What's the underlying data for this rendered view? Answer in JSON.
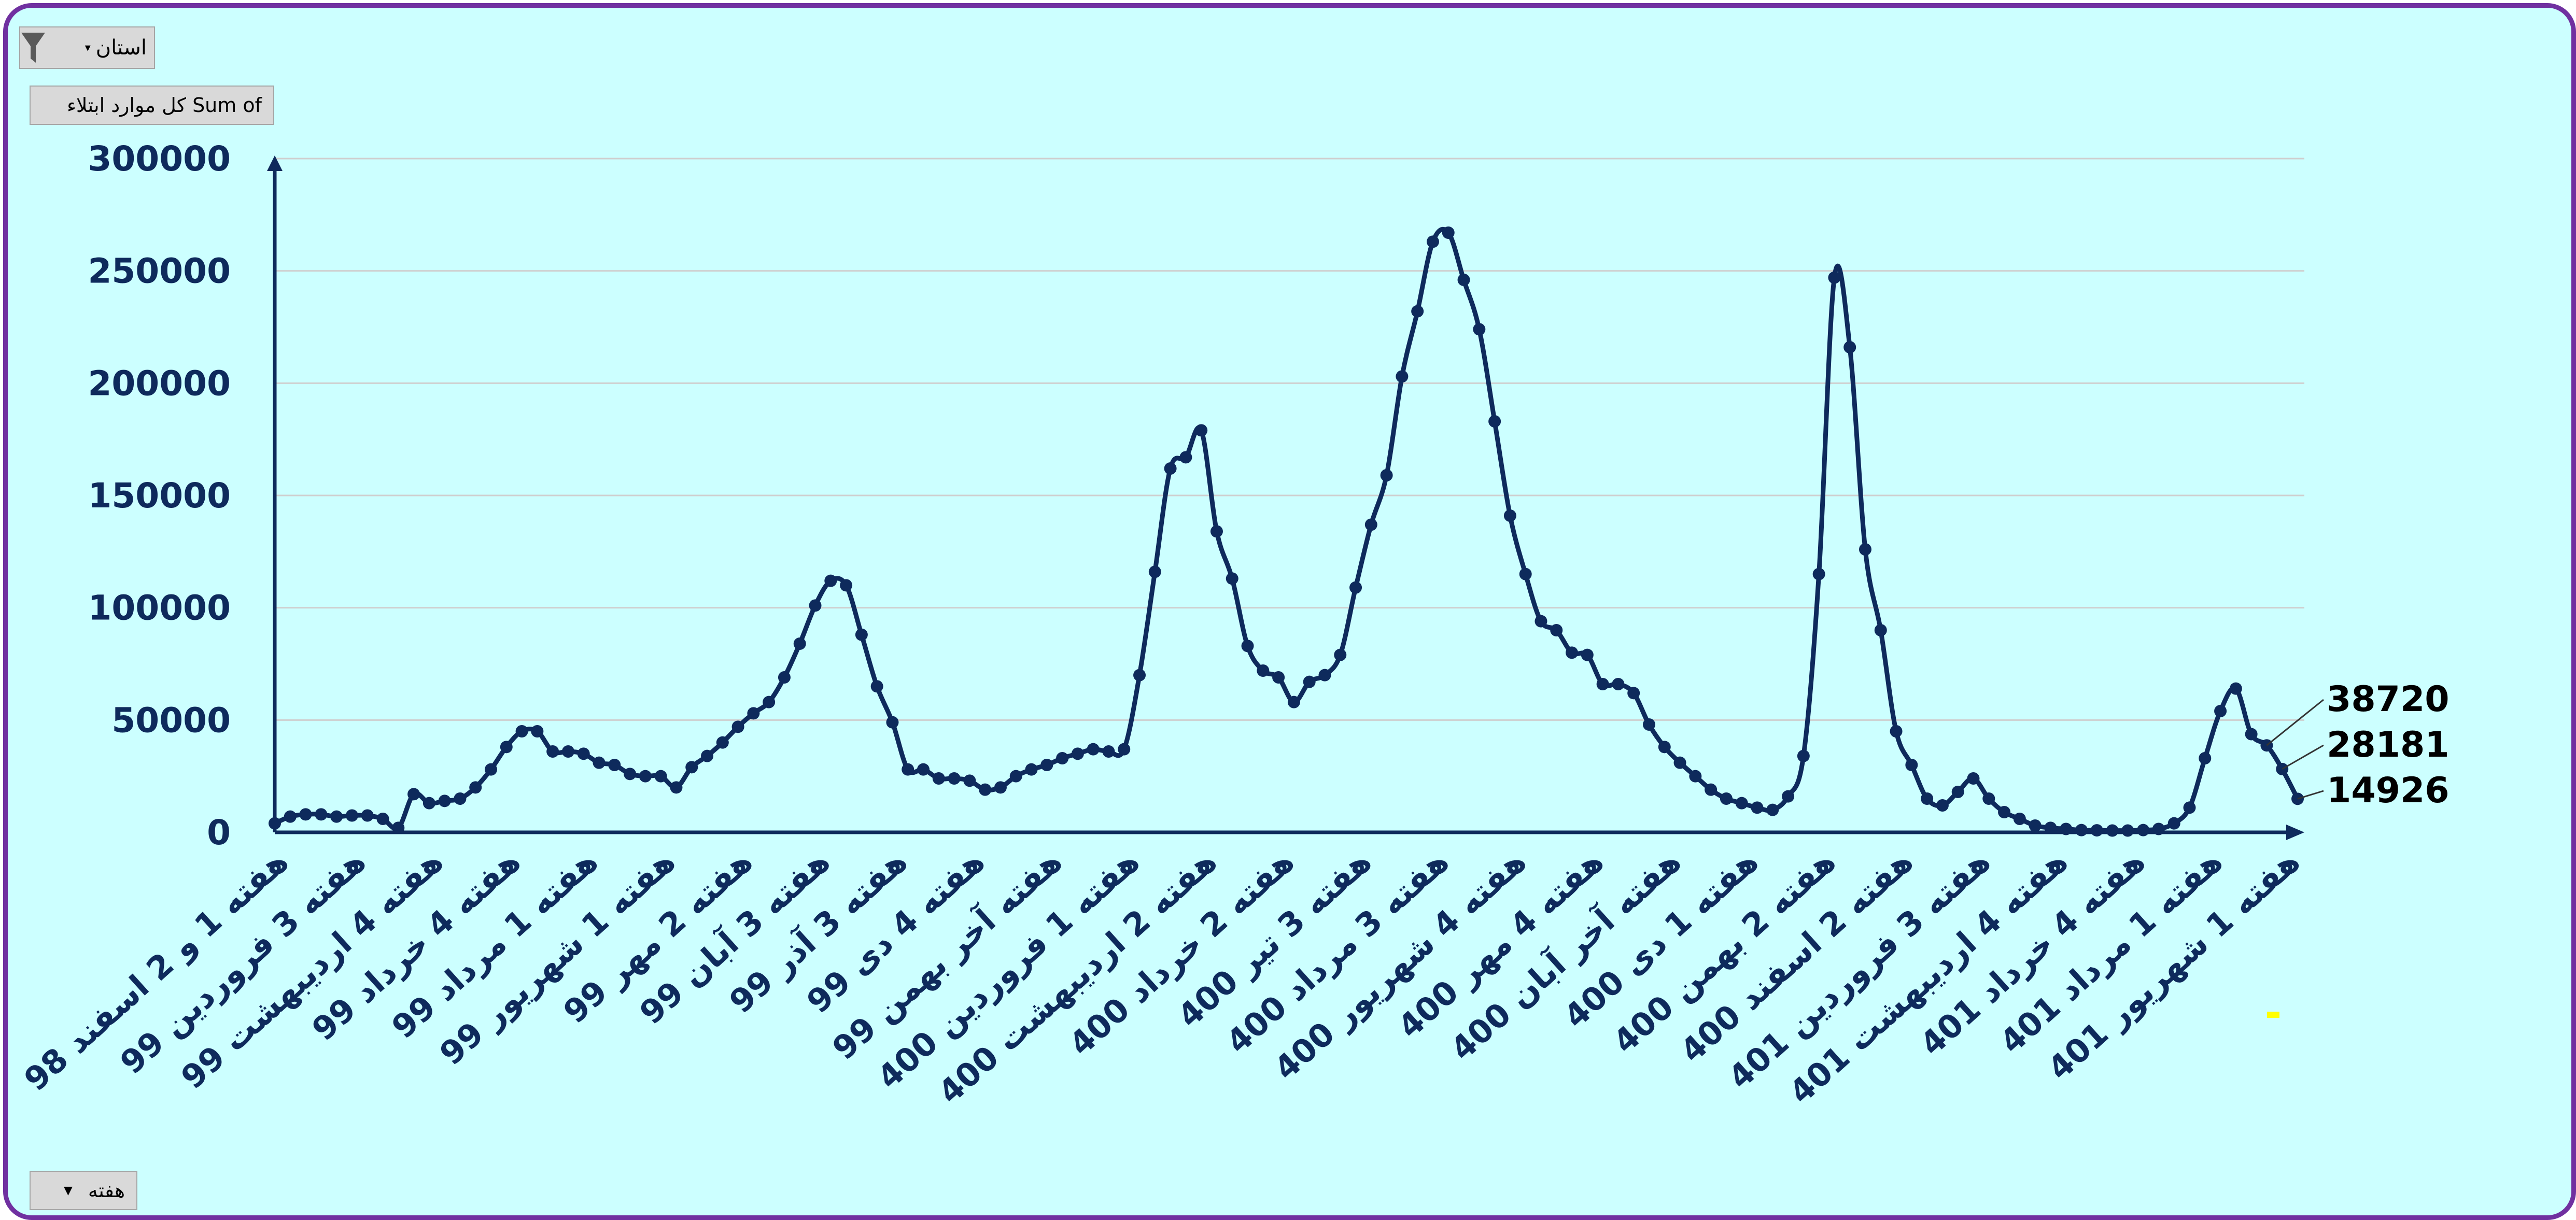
{
  "filters": {
    "province_label": "استان",
    "sum_label": "Sum of کل موارد ابتلاء",
    "week_label": "هفته"
  },
  "colors": {
    "background": "#ccffff",
    "frame": "#7030a0",
    "line": "#0e2a5c",
    "grid": "#cfcfcf",
    "marker_highlight": "#ffff00"
  },
  "icons": {
    "filter": "funnel-icon",
    "dropdown": "chevron-down-icon"
  },
  "chart_data": {
    "type": "line",
    "title": "",
    "xlabel": "",
    "ylabel": "",
    "ylim": [
      0,
      300000
    ],
    "yticks": [
      "0",
      "50000",
      "100000",
      "150000",
      "200000",
      "250000",
      "300000"
    ],
    "grid": true,
    "legend": "none",
    "x_tick_labels": [
      "هفته 1 و 2 اسفند 98",
      "هفته 3 فروردین 99",
      "هفته 4 اردیبهشت 99",
      "هفته 4 خرداد 99",
      "هفته 1 مرداد 99",
      "هفته 1 شهریور 99",
      "هفته 2 مهر 99",
      "هفته 3 آبان 99",
      "هفته 3 آذر 99",
      "هفته 4 دی 99",
      "هفته آخر بهمن 99",
      "هفته 1 فروردین 400",
      "هفته 2 اردیبهشت 400",
      "هفته 2 خرداد 400",
      "هفته 3 تیر 400",
      "هفته 3 مرداد 400",
      "هفته 4 شهریور 400",
      "هفته 4 مهر 400",
      "هفته آخر آبان 400",
      "هفته 1 دی 400",
      "هفته 2 بهمن 400",
      "هفته 2 اسفند 400",
      "هفته 3 فروردین 401",
      "هفته 4 اردیبهشت 401",
      "هفته 4 خرداد 401",
      "هفته 1 مرداد 401",
      "هفته 1 شهریور 401"
    ],
    "series": [
      {
        "values": [
          4000,
          7000,
          8000,
          8000,
          7000,
          7500,
          7500,
          6000,
          2000,
          17000,
          13000,
          14000,
          15000,
          20000,
          28000,
          38000,
          45000,
          45000,
          36000,
          36000,
          35000,
          31000,
          30000,
          26000,
          25000,
          25000,
          20000,
          29000,
          34000,
          40000,
          47000,
          53000,
          58000,
          69000,
          84000,
          101000,
          112000,
          110000,
          88000,
          65000,
          49000,
          28000,
          28000,
          24000,
          24000,
          23000,
          19000,
          20000,
          25000,
          28000,
          30000,
          33000,
          35000,
          37000,
          36000,
          37000,
          70000,
          116000,
          162000,
          167000,
          179000,
          134000,
          113000,
          83000,
          72000,
          69000,
          58000,
          67000,
          70000,
          79000,
          109000,
          137000,
          159000,
          203000,
          232000,
          263000,
          267000,
          246000,
          224000,
          183000,
          141000,
          115000,
          94000,
          90000,
          80000,
          79000,
          66000,
          66000,
          62000,
          48000,
          38000,
          31000,
          25000,
          19000,
          15000,
          13000,
          11000,
          10000,
          16000,
          34000,
          115000,
          247000,
          216000,
          126000,
          90000,
          45000,
          30000,
          15000,
          12000,
          18000,
          24000,
          15000,
          9000,
          6000,
          3000,
          2000,
          1500,
          1000,
          900,
          800,
          800,
          1000,
          1500,
          4000,
          11000,
          33000,
          54000,
          64000,
          43720,
          38720,
          28181,
          14926
        ]
      }
    ],
    "data_labels": [
      "38720",
      "28181",
      "14926"
    ]
  }
}
